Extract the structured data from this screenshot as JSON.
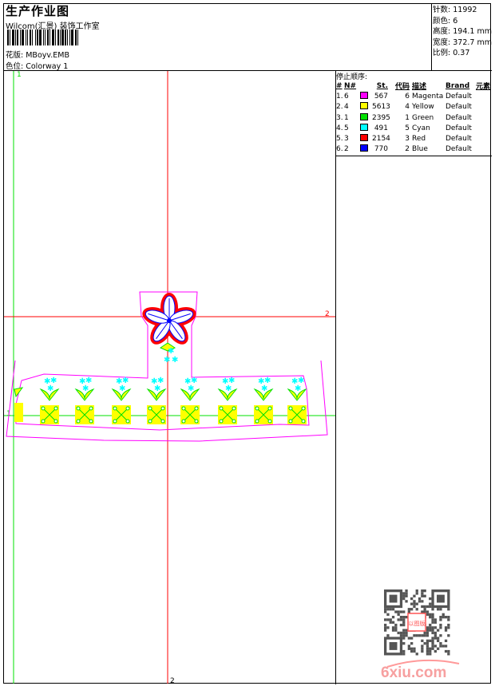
{
  "header": {
    "title": "生产作业图",
    "company": "Wilcom(汇景) 装饰工作室",
    "design_label": "花版:",
    "design_value": "MBoyv.EMB",
    "colorway_label": "色位:",
    "colorway_value": "Colorway 1"
  },
  "stats": [
    {
      "label": "针数:",
      "value": "11992"
    },
    {
      "label": "颜色:",
      "value": "6"
    },
    {
      "label": "高度:",
      "value": "194.1 mm"
    },
    {
      "label": "宽度:",
      "value": "372.7 mm"
    },
    {
      "label": "比例:",
      "value": "0.37"
    }
  ],
  "stop_sequence": {
    "caption": "停止顺序:",
    "headers": [
      "#",
      "N#",
      "",
      "St.",
      "代码",
      "描述",
      "Brand",
      "元素"
    ],
    "rows": [
      {
        "idx": "1.",
        "n": "6",
        "color": "#ff00ff",
        "st": "567",
        "code": "6",
        "desc": "Magenta",
        "brand": "Default"
      },
      {
        "idx": "2.",
        "n": "4",
        "color": "#ffff00",
        "st": "5613",
        "code": "4",
        "desc": "Yellow",
        "brand": "Default"
      },
      {
        "idx": "3.",
        "n": "1",
        "color": "#00e000",
        "st": "2395",
        "code": "1",
        "desc": "Green",
        "brand": "Default"
      },
      {
        "idx": "4.",
        "n": "5",
        "color": "#00ffff",
        "st": "491",
        "code": "5",
        "desc": "Cyan",
        "brand": "Default"
      },
      {
        "idx": "5.",
        "n": "3",
        "color": "#ff0000",
        "st": "2154",
        "code": "3",
        "desc": "Red",
        "brand": "Default"
      },
      {
        "idx": "6.",
        "n": "2",
        "color": "#0000ff",
        "st": "770",
        "code": "2",
        "desc": "Blue",
        "brand": "Default"
      }
    ]
  },
  "canvas": {
    "guide_labels": {
      "green_top": "1",
      "green_left": "1",
      "red_right": "2",
      "red_bottom": "2"
    },
    "guide_colors": {
      "green": "#00e000",
      "red": "#ff0000",
      "outline": "#ff00ff"
    }
  },
  "watermark": {
    "text": "6xiu.com",
    "stamp": "以图版"
  }
}
